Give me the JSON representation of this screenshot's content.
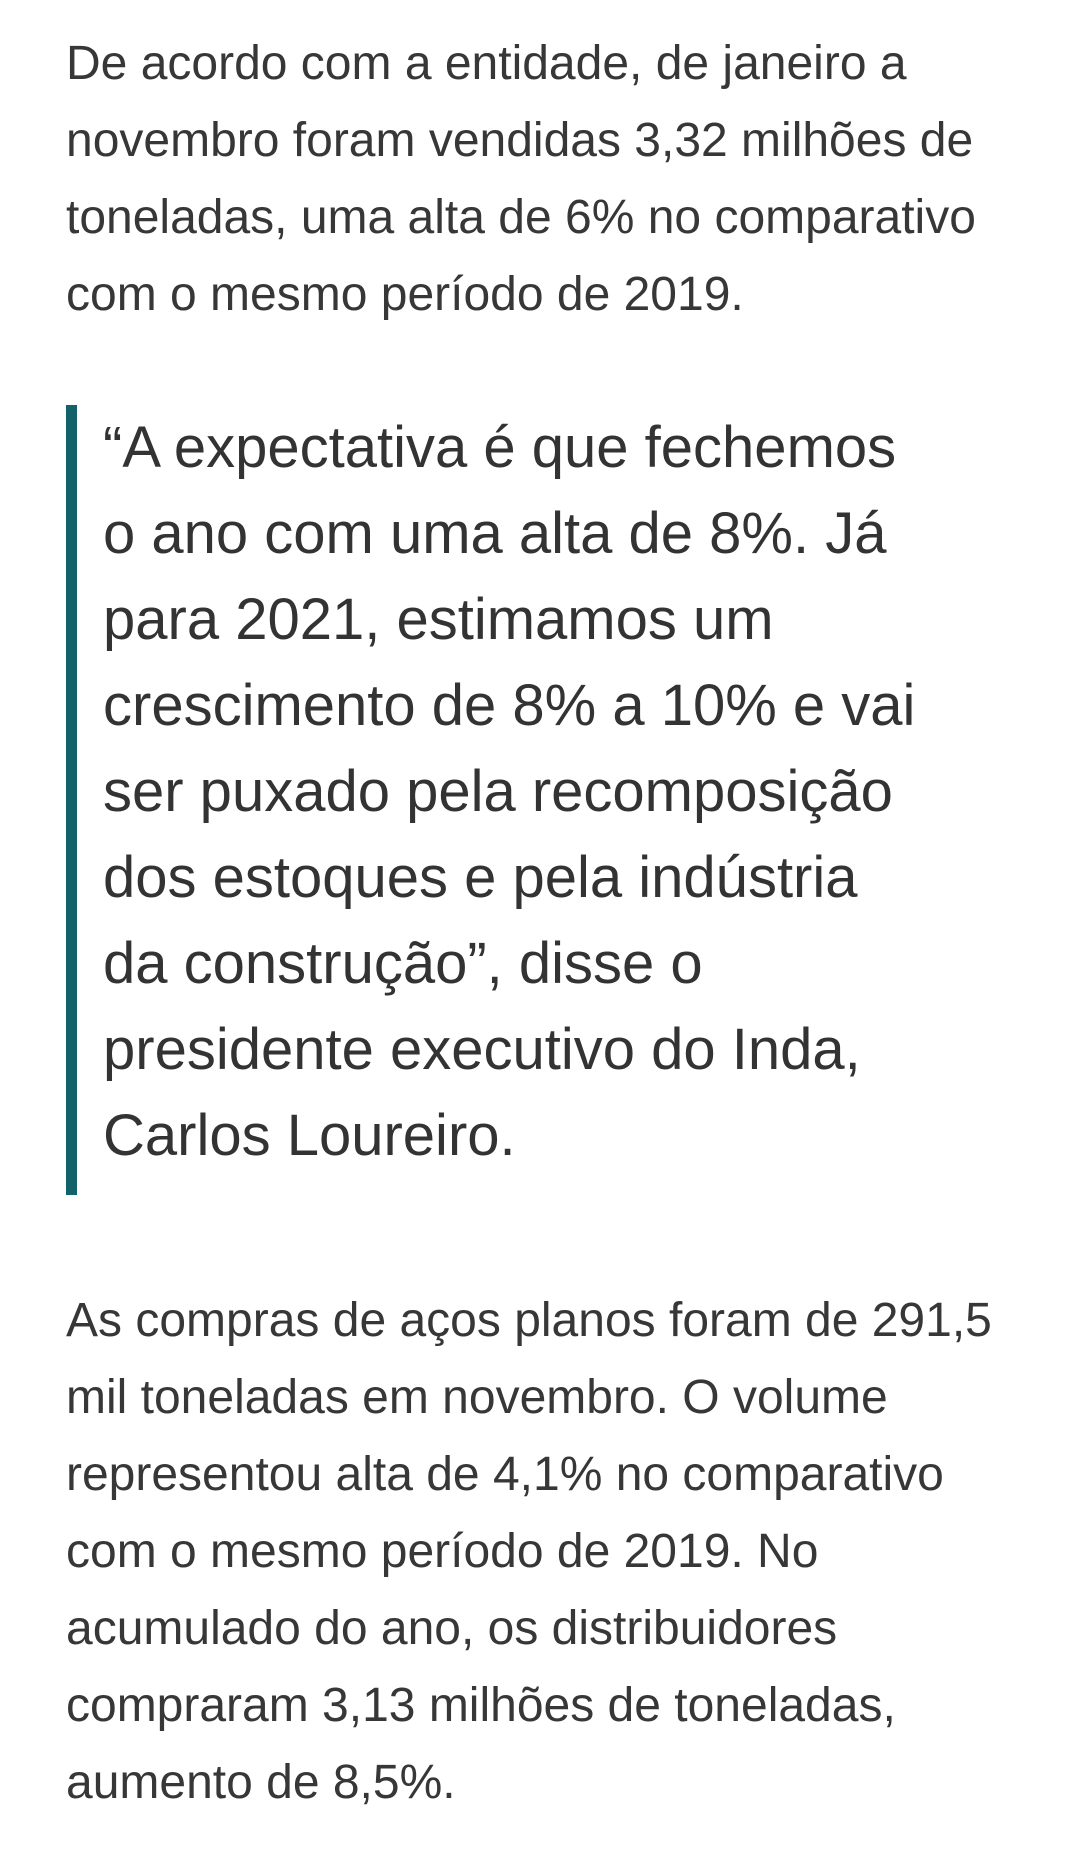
{
  "page": {
    "background_color": "#ffffff",
    "accent_color": "#116269",
    "text_color": "#373737"
  },
  "article": {
    "paragraph_sales_total": "De acordo com a entidade, de janeiro a novembro foram vendidas 3,32 milhões de toneladas, uma alta de 6% no comparativo com o mesmo período de 2019.",
    "quote": {
      "text": "“A expectativa é que fechemos o ano com uma alta de 8%. Já para 2021, estimamos um crescimento de 8% a 10% e vai ser puxado pela recomposição dos estoques e pela indústria da construção”, disse o presidente executivo do Inda, Carlos Loureiro.",
      "border_color": "#116269"
    },
    "paragraph_flat_steel": "As compras de aços planos foram de 291,5 mil toneladas em novembro. O volume representou alta de 4,1% no comparativo com o mesmo período de 2019. No acumulado do ano, os distribuidores compraram 3,13 milhões de toneladas, aumento de 8,5%."
  }
}
